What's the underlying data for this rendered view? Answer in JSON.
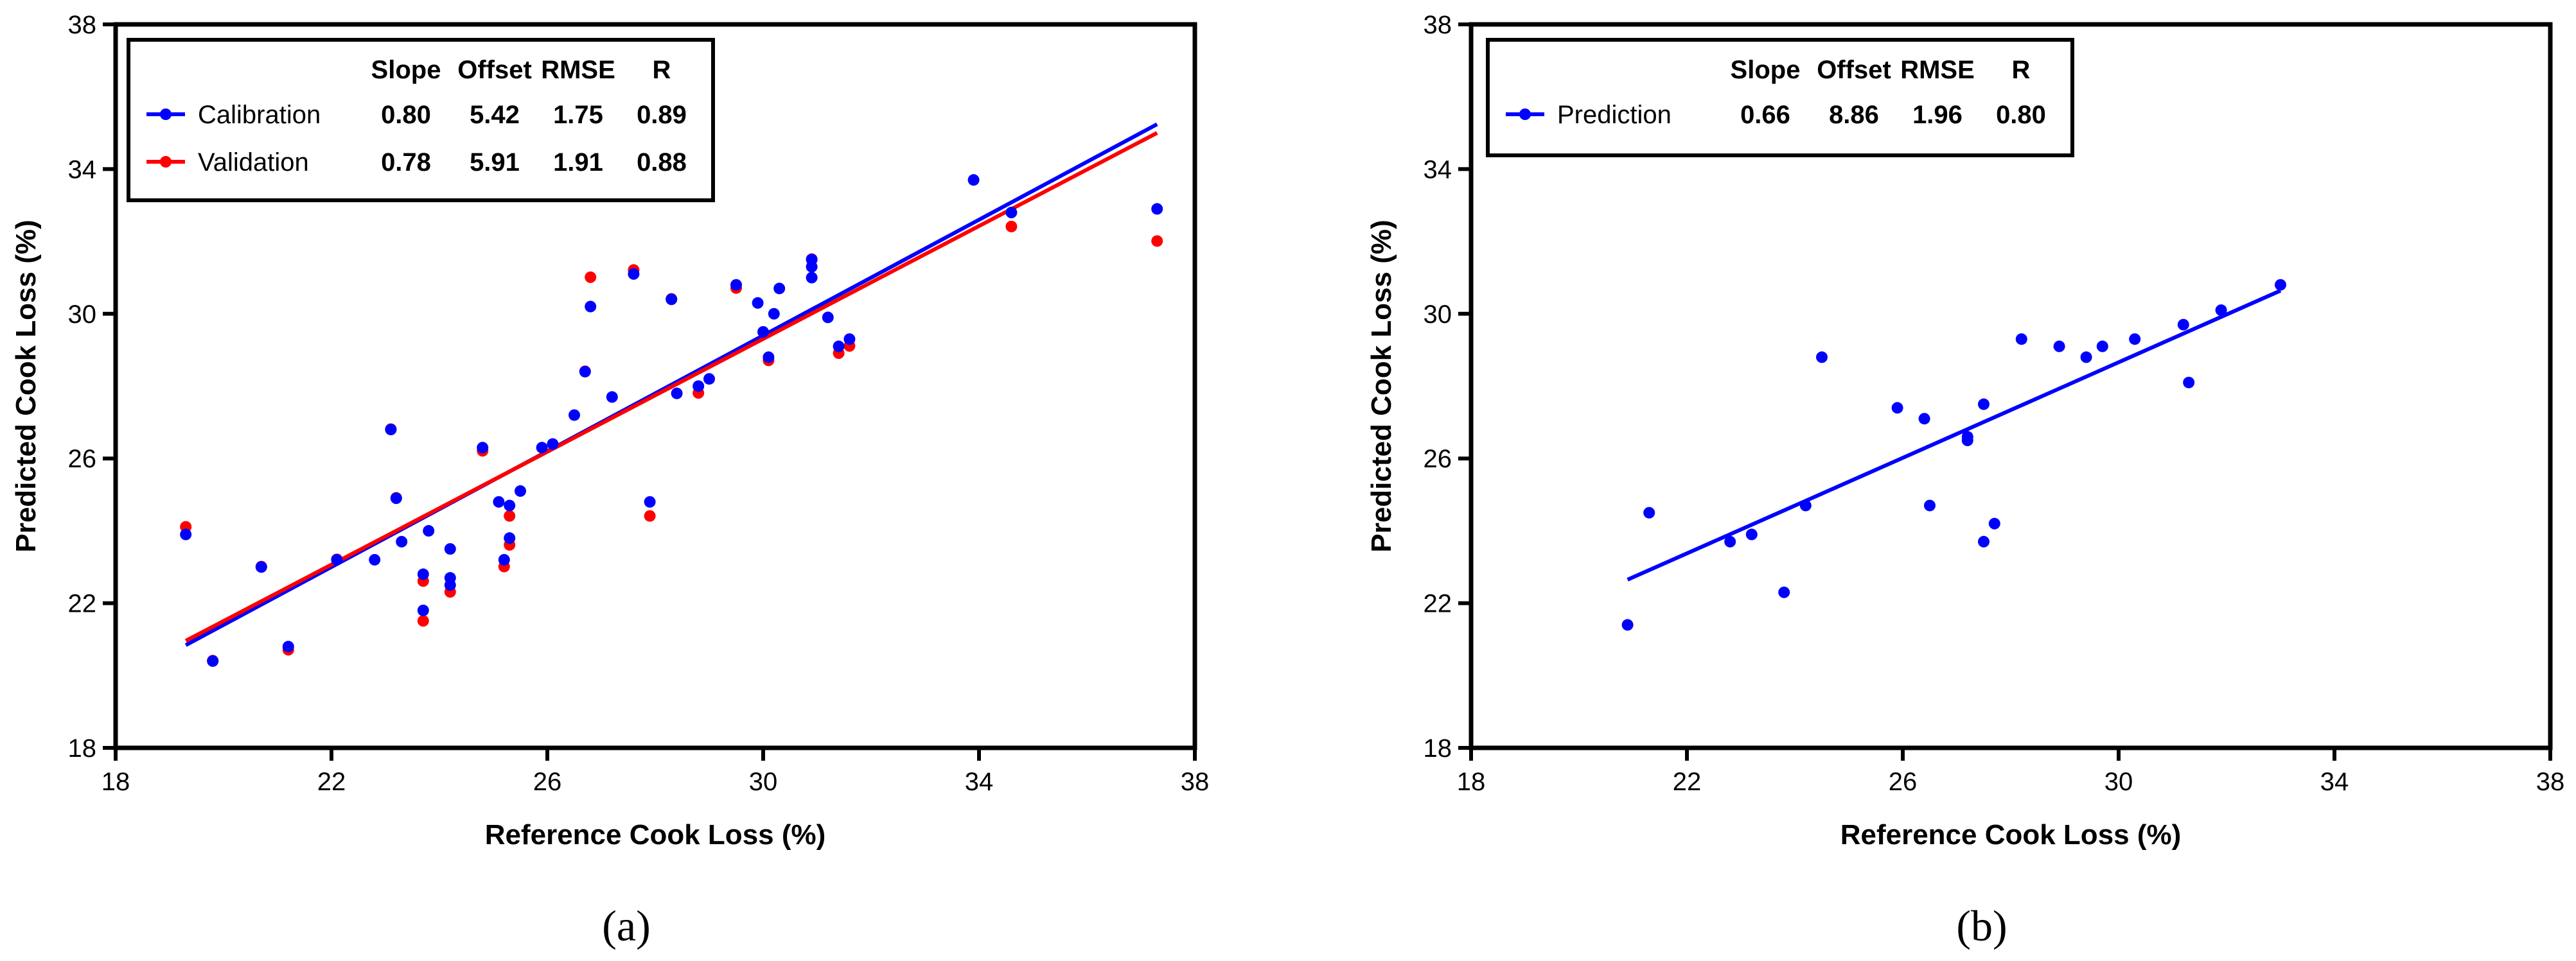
{
  "chart_data": [
    {
      "type": "scatter",
      "panel_label": "(a)",
      "xlabel": "Reference Cook Loss (%)",
      "ylabel": "Predicted Cook Loss (%)",
      "xlim": [
        18,
        38
      ],
      "ylim": [
        18,
        38
      ],
      "xticks": [
        18,
        22,
        26,
        30,
        34,
        38
      ],
      "yticks": [
        18,
        22,
        26,
        30,
        34,
        38
      ],
      "grid": false,
      "legend_position": "top-left",
      "legend_headers": [
        "Slope",
        "Offset",
        "RMSE",
        "R"
      ],
      "series": [
        {
          "name": "Calibration",
          "color": "#0000ff",
          "stats": [
            "0.80",
            "5.42",
            "1.75",
            "0.89"
          ],
          "fit_line": {
            "x": [
              19.3,
              37.3
            ],
            "y": [
              20.84,
              35.24
            ]
          },
          "points": [
            [
              19.3,
              23.9
            ],
            [
              19.8,
              20.4
            ],
            [
              20.7,
              23.0
            ],
            [
              21.2,
              20.8
            ],
            [
              22.1,
              23.2
            ],
            [
              22.8,
              23.2
            ],
            [
              23.1,
              26.8
            ],
            [
              23.2,
              24.9
            ],
            [
              23.3,
              23.7
            ],
            [
              23.7,
              21.8
            ],
            [
              23.7,
              22.8
            ],
            [
              23.8,
              24.0
            ],
            [
              24.2,
              22.5
            ],
            [
              24.2,
              22.7
            ],
            [
              24.2,
              23.5
            ],
            [
              24.8,
              26.3
            ],
            [
              25.1,
              24.8
            ],
            [
              25.2,
              23.2
            ],
            [
              25.3,
              23.8
            ],
            [
              25.3,
              24.7
            ],
            [
              25.5,
              25.1
            ],
            [
              25.9,
              26.3
            ],
            [
              26.1,
              26.4
            ],
            [
              26.5,
              27.2
            ],
            [
              26.7,
              28.4
            ],
            [
              26.8,
              30.2
            ],
            [
              27.2,
              27.7
            ],
            [
              27.6,
              31.1
            ],
            [
              27.9,
              24.8
            ],
            [
              28.3,
              30.4
            ],
            [
              28.4,
              27.8
            ],
            [
              28.8,
              28.0
            ],
            [
              29.0,
              28.2
            ],
            [
              29.5,
              30.8
            ],
            [
              29.9,
              30.3
            ],
            [
              30.0,
              29.5
            ],
            [
              30.1,
              28.8
            ],
            [
              30.2,
              30.0
            ],
            [
              30.3,
              30.7
            ],
            [
              30.9,
              31.0
            ],
            [
              30.9,
              31.3
            ],
            [
              30.9,
              31.5
            ],
            [
              31.2,
              29.9
            ],
            [
              31.4,
              29.1
            ],
            [
              31.6,
              29.3
            ],
            [
              33.9,
              33.7
            ],
            [
              34.6,
              32.8
            ],
            [
              37.3,
              32.9
            ]
          ]
        },
        {
          "name": "Validation",
          "color": "#ff0000",
          "stats": [
            "0.78",
            "5.91",
            "1.91",
            "0.88"
          ],
          "fit_line": {
            "x": [
              19.3,
              37.3
            ],
            "y": [
              20.96,
              35.0
            ]
          },
          "points": [
            [
              19.3,
              24.2
            ],
            [
              19.8,
              20.5
            ],
            [
              20.7,
              23.1
            ],
            [
              21.2,
              20.8
            ],
            [
              22.1,
              23.3
            ],
            [
              23.1,
              26.9
            ],
            [
              23.2,
              25.0
            ],
            [
              23.7,
              21.6
            ],
            [
              23.7,
              22.7
            ],
            [
              24.2,
              22.4
            ],
            [
              24.8,
              26.3
            ],
            [
              25.2,
              23.1
            ],
            [
              25.3,
              23.7
            ],
            [
              25.3,
              24.5
            ],
            [
              26.7,
              28.5
            ],
            [
              26.8,
              31.1
            ],
            [
              27.6,
              31.3
            ],
            [
              27.9,
              24.5
            ],
            [
              28.3,
              30.5
            ],
            [
              28.8,
              27.9
            ],
            [
              29.5,
              30.8
            ],
            [
              30.1,
              28.8
            ],
            [
              30.9,
              31.6
            ],
            [
              31.4,
              29.0
            ],
            [
              31.6,
              29.2
            ],
            [
              34.6,
              32.5
            ],
            [
              37.3,
              32.1
            ]
          ]
        }
      ]
    },
    {
      "type": "scatter",
      "panel_label": "(b)",
      "xlabel": "Reference Cook Loss (%)",
      "ylabel": "Predicted Cook Loss (%)",
      "xlim": [
        18,
        38
      ],
      "ylim": [
        18,
        38
      ],
      "xticks": [
        18,
        22,
        26,
        30,
        34,
        38
      ],
      "yticks": [
        18,
        22,
        26,
        30,
        34,
        38
      ],
      "grid": false,
      "legend_position": "top-left",
      "legend_headers": [
        "Slope",
        "Offset",
        "RMSE",
        "R"
      ],
      "series": [
        {
          "name": "Prediction",
          "color": "#0000ff",
          "stats": [
            "0.66",
            "8.86",
            "1.96",
            "0.80"
          ],
          "fit_line": {
            "x": [
              20.9,
              33.0
            ],
            "y": [
              22.65,
              30.64
            ]
          },
          "points": [
            [
              20.9,
              21.4
            ],
            [
              21.3,
              24.5
            ],
            [
              22.8,
              23.7
            ],
            [
              23.2,
              23.9
            ],
            [
              23.8,
              22.3
            ],
            [
              24.2,
              24.7
            ],
            [
              24.5,
              28.8
            ],
            [
              25.9,
              27.4
            ],
            [
              26.4,
              27.1
            ],
            [
              26.5,
              24.7
            ],
            [
              27.2,
              26.5
            ],
            [
              27.2,
              26.6
            ],
            [
              27.5,
              23.7
            ],
            [
              27.5,
              27.5
            ],
            [
              27.7,
              24.2
            ],
            [
              28.2,
              29.3
            ],
            [
              28.9,
              29.1
            ],
            [
              29.4,
              28.8
            ],
            [
              29.7,
              29.1
            ],
            [
              30.3,
              29.3
            ],
            [
              31.2,
              29.7
            ],
            [
              31.3,
              28.1
            ],
            [
              31.9,
              30.1
            ],
            [
              33.0,
              30.8
            ]
          ]
        }
      ]
    }
  ]
}
